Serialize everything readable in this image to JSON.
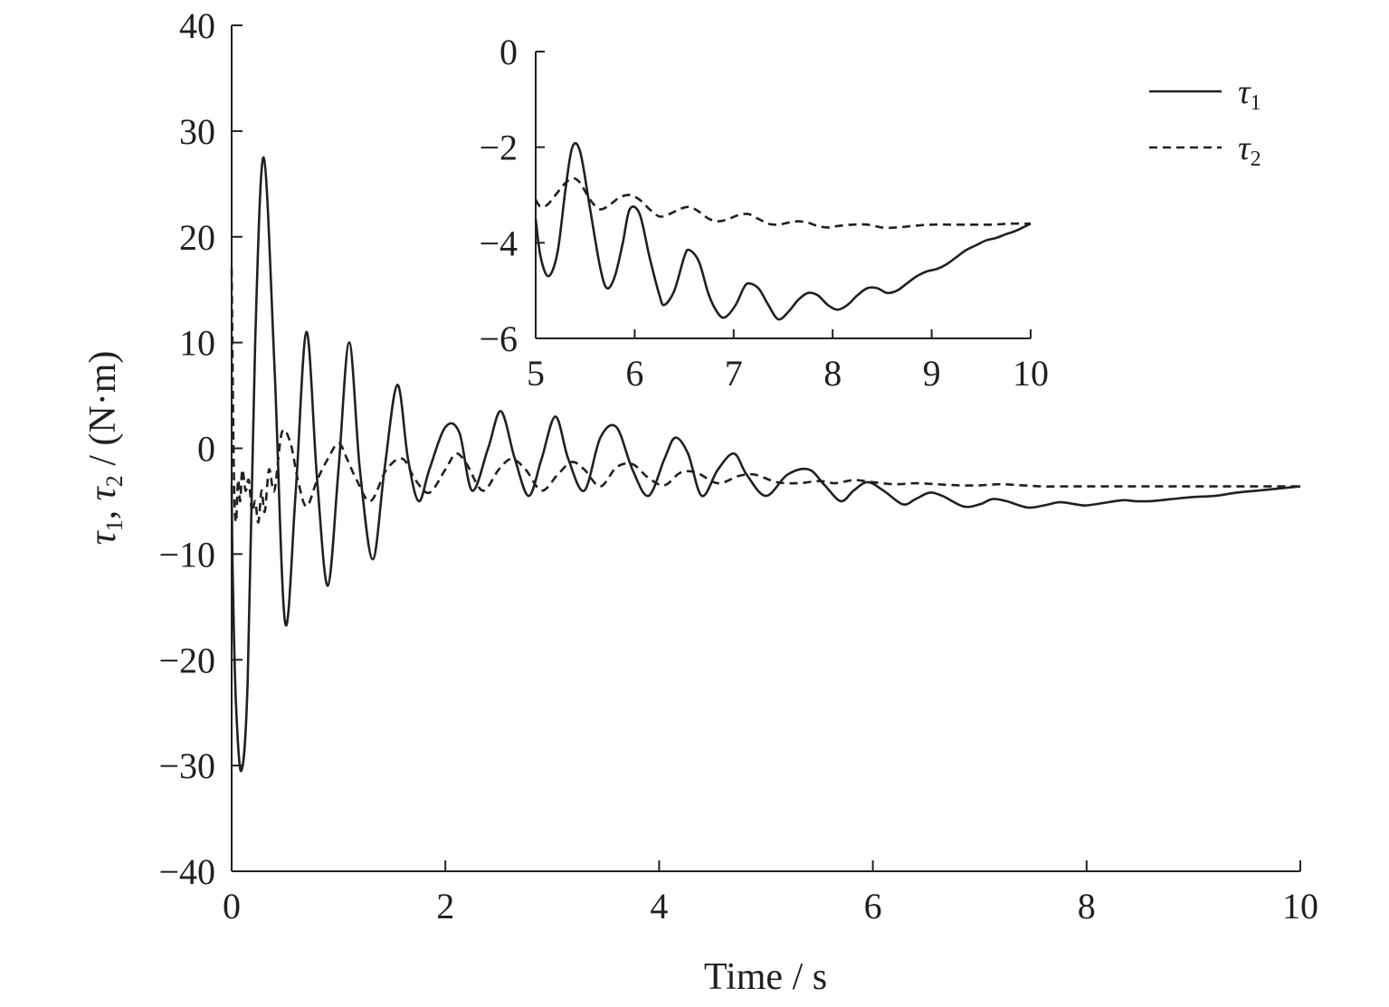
{
  "chart_data": [
    {
      "type": "line",
      "xlabel": "Time / s",
      "ylabel": "τ1, τ2 / (N·m)",
      "xlim": [
        0,
        10
      ],
      "ylim": [
        -40,
        40
      ],
      "xticks": [
        "0",
        "2",
        "4",
        "6",
        "8",
        "10"
      ],
      "yticks": [
        "40",
        "30",
        "20",
        "10",
        "0",
        "−10",
        "−20",
        "−30",
        "−40"
      ],
      "grid": false,
      "legend": "top-right",
      "series": [
        {
          "name": "τ1",
          "style": "solid",
          "x": [
            0,
            0.01,
            0.04,
            0.09,
            0.15,
            0.22,
            0.3,
            0.4,
            0.5,
            0.6,
            0.7,
            0.8,
            0.9,
            1.0,
            1.1,
            1.2,
            1.32,
            1.43,
            1.55,
            1.65,
            1.75,
            1.85,
            2.0,
            2.13,
            2.25,
            2.4,
            2.52,
            2.65,
            2.78,
            2.9,
            3.03,
            3.15,
            3.3,
            3.45,
            3.6,
            3.75,
            3.9,
            4.05,
            4.15,
            4.27,
            4.4,
            4.55,
            4.7,
            4.82,
            5.0,
            5.2,
            5.4,
            5.55,
            5.7,
            5.82,
            5.95,
            6.1,
            6.28,
            6.4,
            6.53,
            6.65,
            6.85,
            7.0,
            7.12,
            7.25,
            7.45,
            7.6,
            7.75,
            7.9,
            8.0,
            8.2,
            8.35,
            8.45,
            8.6,
            8.8,
            9.0,
            9.2,
            9.4,
            9.6,
            9.8,
            10.0
          ],
          "values": [
            -3.5,
            -12,
            -24,
            -30.5,
            -22,
            10,
            27.5,
            8,
            -16.5,
            -4,
            11,
            -3,
            -13,
            -2,
            10,
            -2,
            -10.5,
            -2,
            6,
            -1,
            -5,
            -2,
            2,
            1.5,
            -4,
            0,
            3.5,
            -1,
            -4.5,
            -1,
            3,
            -1,
            -4,
            1,
            2,
            -2,
            -4.5,
            -1,
            1,
            -0.5,
            -4.5,
            -2,
            -0.5,
            -2.5,
            -4.5,
            -2.5,
            -2,
            -3.5,
            -5,
            -4,
            -3.2,
            -4,
            -5.3,
            -4.8,
            -4.2,
            -4.5,
            -5.5,
            -5.3,
            -4.8,
            -5,
            -5.6,
            -5.4,
            -5.1,
            -5.3,
            -5.4,
            -5.1,
            -4.9,
            -5,
            -5,
            -4.8,
            -4.6,
            -4.5,
            -4.2,
            -4.0,
            -3.8,
            -3.6
          ]
        },
        {
          "name": "τ2",
          "style": "dashed",
          "x": [
            0,
            0.02,
            0.04,
            0.06,
            0.08,
            0.1,
            0.13,
            0.16,
            0.19,
            0.22,
            0.25,
            0.28,
            0.31,
            0.35,
            0.4,
            0.47,
            0.55,
            0.62,
            0.7,
            0.8,
            0.9,
            1.0,
            1.08,
            1.17,
            1.3,
            1.45,
            1.6,
            1.72,
            1.85,
            2.0,
            2.1,
            2.2,
            2.35,
            2.5,
            2.62,
            2.75,
            2.9,
            3.05,
            3.18,
            3.3,
            3.45,
            3.6,
            3.75,
            3.9,
            4.05,
            4.2,
            4.35,
            4.55,
            4.75,
            4.9,
            5.1,
            5.3,
            5.5,
            5.65,
            5.82,
            6.0,
            6.2,
            6.4,
            6.6,
            6.8,
            7.0,
            7.2,
            7.4,
            7.6,
            7.8,
            8.0,
            8.2,
            8.4,
            8.6,
            8.8,
            9.0,
            9.3,
            9.6,
            10.0
          ],
          "values": [
            17,
            -2,
            -7,
            -3,
            -5,
            -2,
            -4,
            -3,
            -6,
            -5,
            -7,
            -4,
            -6,
            -2,
            -4,
            1.5,
            0.5,
            -3,
            -5.5,
            -3,
            -1,
            0.5,
            -1,
            -3,
            -5,
            -2,
            -1,
            -3,
            -4.2,
            -2,
            -0.5,
            -1.5,
            -4,
            -2,
            -1,
            -2,
            -4,
            -2.5,
            -1.3,
            -2,
            -3.6,
            -1.8,
            -1.5,
            -2.8,
            -3.5,
            -2.3,
            -2.3,
            -3.3,
            -2.6,
            -2.5,
            -3.2,
            -3.3,
            -3.1,
            -3.3,
            -3,
            -3.2,
            -3.4,
            -3.3,
            -3.4,
            -3.5,
            -3.5,
            -3.4,
            -3.5,
            -3.6,
            -3.6,
            -3.6,
            -3.6,
            -3.6,
            -3.6,
            -3.6,
            -3.6,
            -3.6,
            -3.6,
            -3.6
          ]
        }
      ]
    },
    {
      "type": "line",
      "xlim": [
        5,
        10
      ],
      "ylim": [
        -6,
        0
      ],
      "xticks": [
        "5",
        "6",
        "7",
        "8",
        "9",
        "10"
      ],
      "yticks": [
        "0",
        "−2",
        "−4",
        "−6"
      ],
      "grid": false,
      "series": [
        {
          "name": "τ1",
          "style": "solid",
          "x": [
            5.0,
            5.05,
            5.13,
            5.22,
            5.3,
            5.37,
            5.45,
            5.55,
            5.65,
            5.72,
            5.8,
            5.88,
            5.95,
            6.05,
            6.15,
            6.25,
            6.3,
            6.4,
            6.5,
            6.55,
            6.65,
            6.75,
            6.85,
            6.92,
            7.02,
            7.1,
            7.15,
            7.25,
            7.35,
            7.45,
            7.55,
            7.65,
            7.75,
            7.85,
            7.95,
            8.05,
            8.15,
            8.25,
            8.35,
            8.45,
            8.55,
            8.65,
            8.75,
            8.85,
            8.95,
            9.05,
            9.15,
            9.25,
            9.35,
            9.45,
            9.55,
            9.65,
            9.75,
            9.85,
            10.0
          ],
          "values": [
            -3.5,
            -4.3,
            -4.7,
            -4.2,
            -2.9,
            -2.0,
            -2.1,
            -3.3,
            -4.5,
            -4.95,
            -4.7,
            -4.0,
            -3.3,
            -3.4,
            -4.3,
            -5.1,
            -5.3,
            -5.0,
            -4.3,
            -4.15,
            -4.4,
            -5.1,
            -5.5,
            -5.55,
            -5.3,
            -4.95,
            -4.85,
            -4.95,
            -5.3,
            -5.6,
            -5.45,
            -5.2,
            -5.05,
            -5.1,
            -5.3,
            -5.4,
            -5.3,
            -5.1,
            -4.95,
            -4.95,
            -5.05,
            -5.0,
            -4.85,
            -4.7,
            -4.6,
            -4.55,
            -4.45,
            -4.3,
            -4.15,
            -4.05,
            -3.95,
            -3.9,
            -3.82,
            -3.75,
            -3.6
          ]
        },
        {
          "name": "τ2",
          "style": "dashed",
          "x": [
            5.0,
            5.05,
            5.12,
            5.2,
            5.3,
            5.38,
            5.45,
            5.55,
            5.65,
            5.75,
            5.85,
            5.95,
            6.05,
            6.15,
            6.25,
            6.35,
            6.45,
            6.55,
            6.65,
            6.75,
            6.85,
            6.95,
            7.05,
            7.15,
            7.25,
            7.35,
            7.45,
            7.55,
            7.65,
            7.75,
            7.85,
            7.95,
            8.05,
            8.2,
            8.35,
            8.5,
            8.65,
            8.8,
            9.0,
            9.2,
            9.4,
            9.6,
            9.8,
            10.0
          ],
          "values": [
            -3.1,
            -3.25,
            -3.2,
            -3.0,
            -2.75,
            -2.65,
            -2.75,
            -3.1,
            -3.3,
            -3.2,
            -3.05,
            -3.0,
            -3.1,
            -3.3,
            -3.45,
            -3.4,
            -3.3,
            -3.25,
            -3.35,
            -3.5,
            -3.55,
            -3.5,
            -3.42,
            -3.4,
            -3.5,
            -3.6,
            -3.62,
            -3.58,
            -3.55,
            -3.58,
            -3.65,
            -3.68,
            -3.65,
            -3.62,
            -3.62,
            -3.68,
            -3.68,
            -3.65,
            -3.62,
            -3.62,
            -3.62,
            -3.62,
            -3.6,
            -3.6
          ]
        }
      ]
    }
  ],
  "legend": {
    "tau1": {
      "base": "τ",
      "sub": "1"
    },
    "tau2": {
      "base": "τ",
      "sub": "2"
    }
  },
  "axis": {
    "ylabel_parts": {
      "t1": "τ",
      "s1": "1",
      "sep": ", ",
      "t2": "τ",
      "s2": "2",
      "unit": " / (N·m)"
    }
  }
}
